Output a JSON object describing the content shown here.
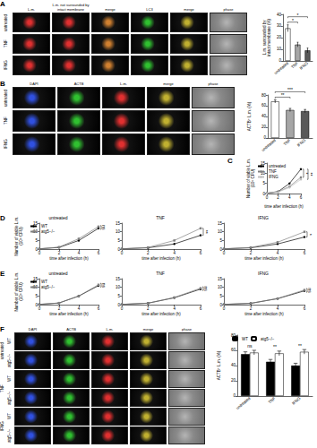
{
  "image_panels": [
    {
      "panel": "A",
      "columns": [
        "L.m.",
        "L.m. not surrounded by intact membrane",
        "merge",
        "LC3",
        "merge",
        "phase"
      ],
      "rows": [
        "untreated",
        "TNF",
        "IFNG"
      ]
    },
    {
      "panel": "B",
      "columns": [
        "DAPI",
        "ACTB",
        "L.m.",
        "merge",
        "phase"
      ],
      "rows": [
        "untreated",
        "TNF",
        "IFNG"
      ]
    },
    {
      "panel": "F",
      "columns": [
        "DAPI",
        "ACTB",
        "L.m.",
        "merge",
        "phase"
      ],
      "groups": [
        {
          "name": "untreated",
          "rows": [
            "WT",
            "atg5−/−"
          ]
        },
        {
          "name": "TNF",
          "rows": [
            "WT",
            "atg5−/−"
          ]
        },
        {
          "name": "IFNG",
          "rows": [
            "WT",
            "atg5−/−"
          ]
        }
      ]
    }
  ],
  "chart_data": [
    {
      "type": "bar",
      "categories": [
        "untreated",
        "TNF",
        "IFNG"
      ],
      "values": [
        28,
        14,
        9
      ],
      "errors": [
        3,
        2,
        2
      ],
      "colors": [
        "#ffffff",
        "#a6a6a6",
        "#595959"
      ],
      "ylabel": "L.m. surrounded by\nintact membrane (%)",
      "ylim": [
        0,
        40
      ],
      "yticks": [
        0,
        10,
        20,
        30,
        40
      ],
      "significance": [
        {
          "from": "untreated",
          "to": "TNF",
          "label": "*"
        },
        {
          "from": "untreated",
          "to": "IFNG",
          "label": "*"
        }
      ]
    },
    {
      "type": "bar",
      "categories": [
        "untreated",
        "TNF",
        "IFNG"
      ],
      "values": [
        68,
        52,
        50
      ],
      "errors": [
        3,
        3,
        3
      ],
      "colors": [
        "#ffffff",
        "#a6a6a6",
        "#595959"
      ],
      "ylabel": "ACTB⁺ L.m. (%)",
      "ylim": [
        0,
        80
      ],
      "yticks": [
        0,
        20,
        40,
        60,
        80
      ],
      "significance": [
        {
          "from": "untreated",
          "to": "TNF",
          "label": "**"
        },
        {
          "from": "untreated",
          "to": "IFNG",
          "label": "***"
        }
      ]
    },
    {
      "type": "line",
      "panel": "C",
      "x": [
        0,
        2,
        4,
        6
      ],
      "xlim": [
        0,
        6
      ],
      "xticks": [
        0,
        2,
        4,
        6
      ],
      "ylim": [
        0,
        15
      ],
      "yticks": [
        0,
        5,
        10,
        15
      ],
      "xlabel": "time after infection (h)",
      "ylabel": "Number of viable L.m.\n(10⁵ CFU)",
      "legend": "upper left",
      "series": [
        {
          "name": "untreated",
          "color": "#000000",
          "marker": "circle",
          "values": [
            0.2,
            1,
            5,
            12
          ]
        },
        {
          "name": "TNF",
          "color": "#808080",
          "marker": "circle",
          "values": [
            0.2,
            0.9,
            3.5,
            8
          ]
        },
        {
          "name": "IFNG",
          "color": "#bfbfbf",
          "marker": "circle",
          "values": [
            0.2,
            0.8,
            3,
            7
          ]
        }
      ],
      "annotations": [
        {
          "label": "*",
          "series": [
            "untreated",
            "TNF"
          ]
        },
        {
          "label": "**",
          "series": [
            "untreated",
            "IFNG"
          ]
        }
      ]
    },
    {
      "type": "line",
      "panel": "D",
      "title": "untreated",
      "x": [
        0,
        2,
        4,
        6
      ],
      "xlim": [
        0,
        6
      ],
      "xticks": [
        0,
        2,
        4,
        6
      ],
      "ylim": [
        0,
        15
      ],
      "yticks": [
        0,
        5,
        10,
        15
      ],
      "xlabel": "time after infection (h)",
      "ylabel": "Number of viable L.m.\n(10⁵ CFU)",
      "legend": "upper left",
      "series": [
        {
          "name": "WT",
          "color": "#000000",
          "marker": "circle",
          "values": [
            0.2,
            1,
            5,
            12
          ]
        },
        {
          "name": "atg5−/−",
          "color": "#808080",
          "marker": "rect",
          "values": [
            0.2,
            1.2,
            6,
            13
          ]
        }
      ],
      "annotations": [
        {
          "label": "ns",
          "series": [
            "WT",
            "atg5−/−"
          ]
        }
      ]
    },
    {
      "type": "line",
      "title": "TNF",
      "x": [
        0,
        2,
        4,
        6
      ],
      "xlim": [
        0,
        6
      ],
      "xticks": [
        0,
        2,
        4,
        6
      ],
      "ylim": [
        0,
        15
      ],
      "yticks": [
        0,
        5,
        10,
        15
      ],
      "xlabel": "time after infection (h)",
      "series": [
        {
          "name": "WT",
          "color": "#000000",
          "marker": "circle",
          "values": [
            0.2,
            0.8,
            3,
            8
          ]
        },
        {
          "name": "atg5−/−",
          "color": "#808080",
          "marker": "rect",
          "values": [
            0.2,
            1,
            5,
            12
          ]
        }
      ],
      "annotations": [
        {
          "label": "**",
          "series": [
            "WT",
            "atg5−/−"
          ]
        }
      ]
    },
    {
      "type": "line",
      "title": "IFNG",
      "x": [
        0,
        2,
        4,
        6
      ],
      "xlim": [
        0,
        6
      ],
      "xticks": [
        0,
        2,
        4,
        6
      ],
      "ylim": [
        0,
        15
      ],
      "yticks": [
        0,
        5,
        10,
        15
      ],
      "xlabel": "time after infection (h)",
      "series": [
        {
          "name": "WT",
          "color": "#000000",
          "marker": "circle",
          "values": [
            0.2,
            0.8,
            3,
            7
          ]
        },
        {
          "name": "atg5−/−",
          "color": "#808080",
          "marker": "rect",
          "values": [
            0.2,
            1,
            4,
            10
          ]
        }
      ],
      "annotations": [
        {
          "label": "*",
          "series": [
            "WT",
            "atg5−/−"
          ]
        }
      ]
    },
    {
      "type": "line",
      "panel": "E",
      "title": "untreated",
      "x": [
        0,
        2,
        4,
        6
      ],
      "xlim": [
        0,
        6
      ],
      "xticks": [
        0,
        2,
        4,
        6
      ],
      "ylim": [
        0,
        15
      ],
      "yticks": [
        0,
        5,
        10,
        15
      ],
      "xlabel": "time after infection (h)",
      "ylabel": "Number of viable L.m.\n(10⁵ CFU)",
      "legend": "upper left",
      "series": [
        {
          "name": "WT",
          "color": "#000000",
          "marker": "circle",
          "values": [
            0.2,
            1,
            5,
            11
          ]
        },
        {
          "name": "atg5−/−",
          "color": "#808080",
          "marker": "rect",
          "values": [
            0.2,
            1,
            5,
            11.5
          ]
        }
      ],
      "annotations": [
        {
          "label": "ns",
          "series": [
            "WT",
            "atg5−/−"
          ]
        }
      ]
    },
    {
      "type": "line",
      "title": "TNF",
      "x": [
        0,
        2,
        4,
        6
      ],
      "xlim": [
        0,
        6
      ],
      "xticks": [
        0,
        2,
        4,
        6
      ],
      "ylim": [
        0,
        15
      ],
      "yticks": [
        0,
        5,
        10,
        15
      ],
      "xlabel": "time after infection (h)",
      "series": [
        {
          "name": "WT",
          "color": "#000000",
          "marker": "circle",
          "values": [
            0.2,
            0.9,
            4,
            9
          ]
        },
        {
          "name": "atg5−/−",
          "color": "#808080",
          "marker": "rect",
          "values": [
            0.2,
            0.9,
            4.2,
            9.5
          ]
        }
      ],
      "annotations": [
        {
          "label": "ns",
          "series": [
            "WT",
            "atg5−/−"
          ]
        }
      ]
    },
    {
      "type": "line",
      "title": "IFNG",
      "x": [
        0,
        2,
        4,
        6
      ],
      "xlim": [
        0,
        6
      ],
      "xticks": [
        0,
        2,
        4,
        6
      ],
      "ylim": [
        0,
        15
      ],
      "yticks": [
        0,
        5,
        10,
        15
      ],
      "xlabel": "time after infection (h)",
      "series": [
        {
          "name": "WT",
          "color": "#000000",
          "marker": "circle",
          "values": [
            0.2,
            0.8,
            3.5,
            8
          ]
        },
        {
          "name": "atg5−/−",
          "color": "#808080",
          "marker": "rect",
          "values": [
            0.2,
            0.8,
            3.6,
            8.5
          ]
        }
      ],
      "annotations": [
        {
          "label": "ns",
          "series": [
            "WT",
            "atg5−/−"
          ]
        }
      ]
    },
    {
      "type": "bar",
      "categories": [
        "untreated",
        "TNF",
        "IFNG"
      ],
      "ylabel": "ACTB⁺ L.m. (%)",
      "ylim": [
        0,
        80
      ],
      "yticks": [
        0,
        20,
        40,
        60,
        80
      ],
      "legend": "upper left",
      "series": [
        {
          "name": "WT",
          "color": "#000000",
          "values": [
            55,
            45,
            40
          ],
          "errors": [
            3,
            3,
            3
          ]
        },
        {
          "name": "atg5−/−",
          "color": "#ffffff",
          "values": [
            57,
            56,
            58
          ],
          "errors": [
            3,
            3,
            3
          ]
        }
      ],
      "annotations": [
        {
          "category": "untreated",
          "label": "ns"
        },
        {
          "category": "TNF",
          "label": "**"
        },
        {
          "category": "IFNG",
          "label": "**"
        }
      ]
    }
  ]
}
